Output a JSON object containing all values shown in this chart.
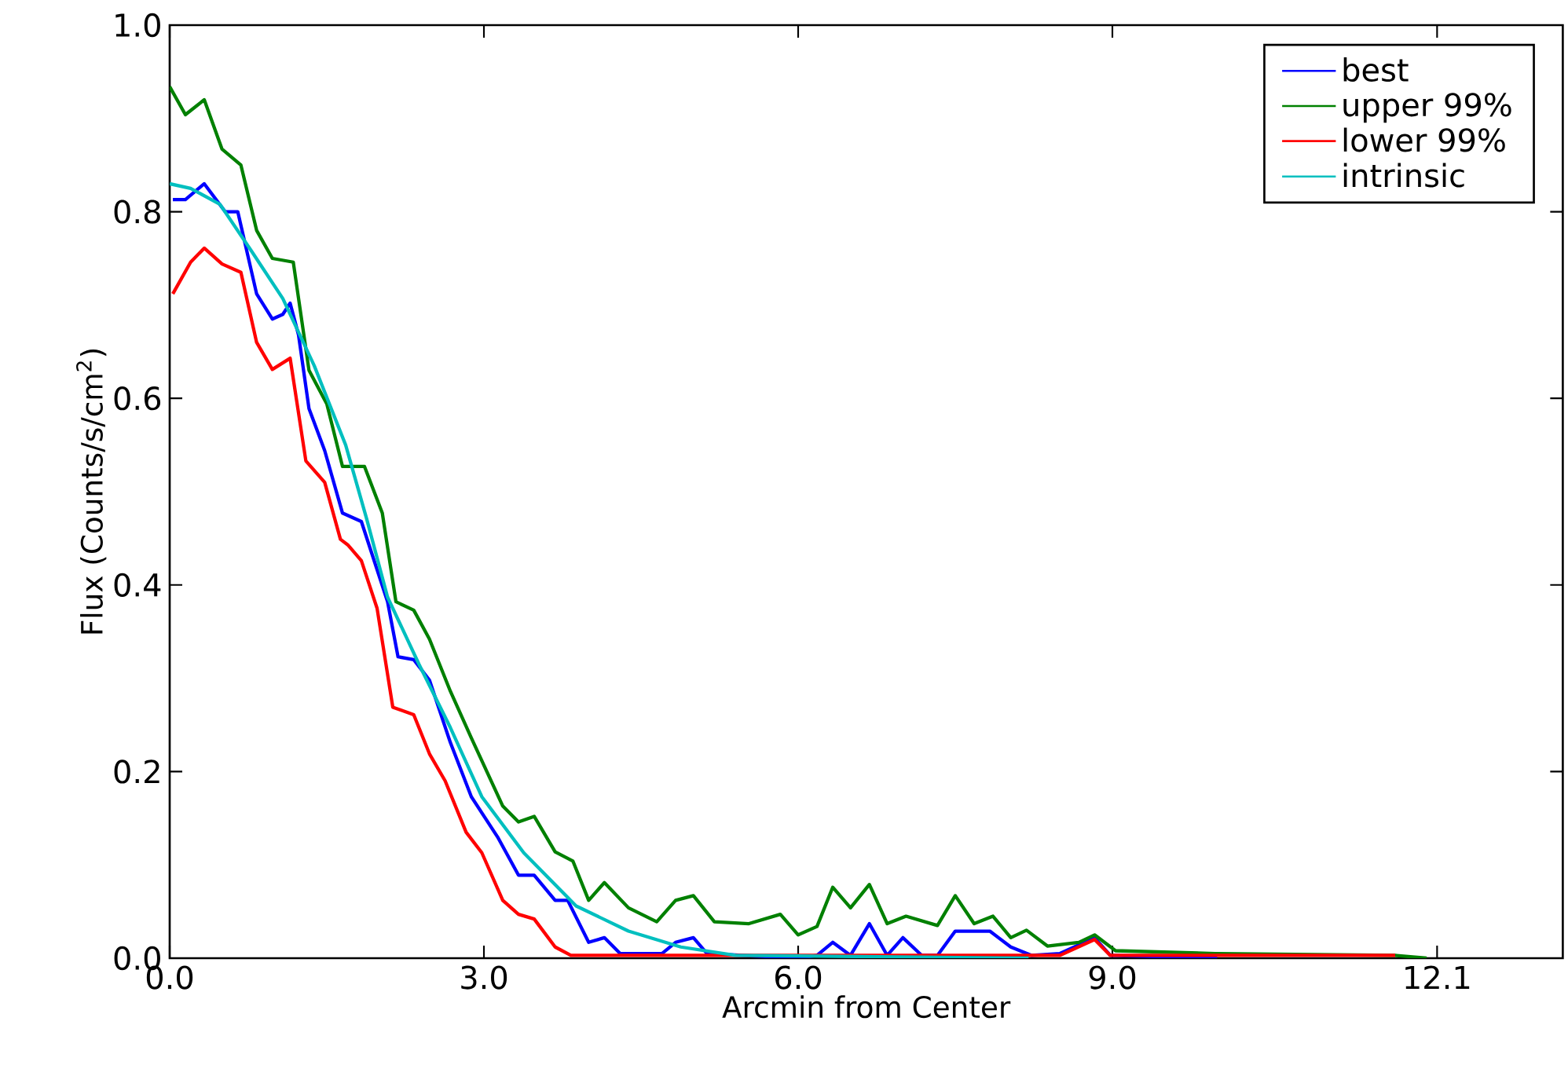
{
  "chart_data": {
    "type": "line",
    "xlabel": "Arcmin from Center",
    "ylabel": "Flux (Counts/s/cm$^{2}$)",
    "xlim": [
      0,
      13.3
    ],
    "ylim": [
      0,
      1.0
    ],
    "xticks": [
      {
        "value": 0,
        "label": "0.0"
      },
      {
        "value": 3,
        "label": "3.0"
      },
      {
        "value": 6,
        "label": "6.0"
      },
      {
        "value": 9,
        "label": "9.0"
      },
      12.1
    ],
    "yticks": [
      {
        "value": 0,
        "label": "0.0"
      },
      0.2,
      0.4,
      0.6,
      0.8,
      {
        "value": 1,
        "label": "1.0"
      }
    ],
    "grid": false,
    "legend": "top right",
    "marker": "none",
    "line_style": "solid",
    "series": [
      {
        "name": "best",
        "color": "#0000ff",
        "x": [
          0.03,
          0.15,
          0.33,
          0.53,
          0.65,
          0.83,
          0.98,
          1.08,
          1.15,
          1.23,
          1.33,
          1.48,
          1.65,
          1.83,
          2.08,
          2.18,
          2.33,
          2.48,
          2.68,
          2.88,
          3.13,
          3.33,
          3.48,
          3.68,
          3.8,
          4.0,
          4.15,
          4.3,
          4.7,
          4.83,
          5.0,
          5.13,
          6.0,
          6.18,
          6.33,
          6.5,
          6.68,
          6.85,
          7.0,
          7.18,
          7.33,
          7.5,
          7.83,
          8.03,
          8.23,
          8.5,
          8.83,
          8.98,
          10.0
        ],
        "values": [
          0.813,
          0.813,
          0.83,
          0.8,
          0.8,
          0.712,
          0.685,
          0.69,
          0.702,
          0.668,
          0.589,
          0.544,
          0.477,
          0.468,
          0.382,
          0.323,
          0.32,
          0.298,
          0.231,
          0.173,
          0.13,
          0.089,
          0.089,
          0.062,
          0.062,
          0.017,
          0.022,
          0.005,
          0.005,
          0.017,
          0.022,
          0.005,
          0.0,
          0.003,
          0.017,
          0.003,
          0.037,
          0.003,
          0.022,
          0.003,
          0.003,
          0.029,
          0.029,
          0.012,
          0.003,
          0.005,
          0.022,
          0.003,
          0.0
        ]
      },
      {
        "name": "upper 99%",
        "color": "#008000",
        "x": [
          0.0,
          0.15,
          0.33,
          0.5,
          0.68,
          0.83,
          0.98,
          1.18,
          1.33,
          1.5,
          1.65,
          1.86,
          2.03,
          2.16,
          2.33,
          2.48,
          2.68,
          2.88,
          3.18,
          3.33,
          3.48,
          3.68,
          3.85,
          4.0,
          4.15,
          4.38,
          4.65,
          4.83,
          5.0,
          5.2,
          5.53,
          5.83,
          6.0,
          6.18,
          6.33,
          6.5,
          6.68,
          6.85,
          7.03,
          7.33,
          7.5,
          7.68,
          7.86,
          8.03,
          8.18,
          8.38,
          8.68,
          8.83,
          9.03,
          9.98,
          11.7,
          12.0
        ],
        "values": [
          0.934,
          0.904,
          0.92,
          0.867,
          0.85,
          0.78,
          0.75,
          0.746,
          0.63,
          0.594,
          0.527,
          0.527,
          0.477,
          0.382,
          0.373,
          0.342,
          0.286,
          0.236,
          0.163,
          0.146,
          0.152,
          0.114,
          0.104,
          0.062,
          0.081,
          0.054,
          0.039,
          0.062,
          0.067,
          0.039,
          0.037,
          0.047,
          0.025,
          0.034,
          0.076,
          0.054,
          0.079,
          0.037,
          0.045,
          0.035,
          0.067,
          0.037,
          0.045,
          0.022,
          0.03,
          0.013,
          0.017,
          0.025,
          0.008,
          0.005,
          0.003,
          0.0
        ]
      },
      {
        "name": "lower 99%",
        "color": "#ff0000",
        "x": [
          0.03,
          0.2,
          0.33,
          0.5,
          0.68,
          0.83,
          0.98,
          1.15,
          1.3,
          1.48,
          1.63,
          1.7,
          1.83,
          1.98,
          2.13,
          2.33,
          2.48,
          2.63,
          2.83,
          2.98,
          3.18,
          3.33,
          3.48,
          3.68,
          3.83,
          8.5,
          8.83,
          8.98,
          11.7
        ],
        "values": [
          0.712,
          0.746,
          0.761,
          0.744,
          0.735,
          0.66,
          0.631,
          0.643,
          0.533,
          0.51,
          0.449,
          0.443,
          0.426,
          0.375,
          0.269,
          0.261,
          0.219,
          0.19,
          0.135,
          0.113,
          0.062,
          0.047,
          0.042,
          0.012,
          0.003,
          0.003,
          0.02,
          0.003,
          0.003
        ]
      },
      {
        "name": "intrinsic",
        "color": "#00bfbf",
        "x": [
          0.0,
          0.2,
          0.48,
          0.78,
          1.08,
          1.38,
          1.68,
          1.88,
          2.08,
          2.38,
          2.68,
          2.98,
          3.38,
          3.88,
          4.38,
          4.88,
          5.4,
          8.2
        ],
        "values": [
          0.83,
          0.825,
          0.808,
          0.758,
          0.707,
          0.635,
          0.55,
          0.471,
          0.387,
          0.315,
          0.247,
          0.173,
          0.113,
          0.056,
          0.029,
          0.012,
          0.003,
          0.0
        ]
      }
    ]
  }
}
